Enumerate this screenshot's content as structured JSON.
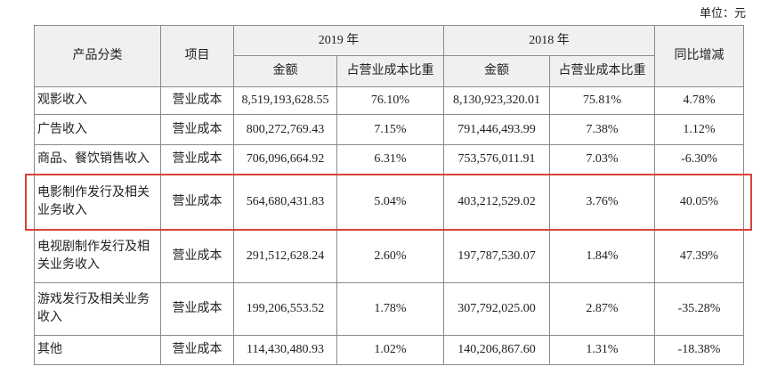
{
  "unit": "单位：元",
  "table": {
    "header_top": [
      "产品分类",
      "项目",
      "2019 年",
      "2018 年",
      "同比增减"
    ],
    "header_sub": [
      "金额",
      "占营业成本比重",
      "金额",
      "占营业成本比重"
    ],
    "rows": [
      [
        "观影收入",
        "营业成本",
        "8,519,193,628.55",
        "76.10%",
        "8,130,923,320.01",
        "75.81%",
        "4.78%"
      ],
      [
        "广告收入",
        "营业成本",
        "800,272,769.43",
        "7.15%",
        "791,446,493.99",
        "7.38%",
        "1.12%"
      ],
      [
        "商品、餐饮销售收入",
        "营业成本",
        "706,096,664.92",
        "6.31%",
        "753,576,011.91",
        "7.03%",
        "-6.30%"
      ],
      [
        "电影制作发行及相关业务收入",
        "营业成本",
        "564,680,431.83",
        "5.04%",
        "403,212,529.02",
        "3.76%",
        "40.05%"
      ],
      [
        "电视剧制作发行及相关业务收入",
        "营业成本",
        "291,512,628.24",
        "2.60%",
        "197,787,530.07",
        "1.84%",
        "47.39%"
      ],
      [
        "游戏发行及相关业务收入",
        "营业成本",
        "199,206,553.52",
        "1.78%",
        "307,792,025.00",
        "2.87%",
        "-35.28%"
      ],
      [
        "其他",
        "营业成本",
        "114,430,480.93",
        "1.02%",
        "140,206,867.60",
        "1.31%",
        "-18.38%"
      ]
    ]
  }
}
